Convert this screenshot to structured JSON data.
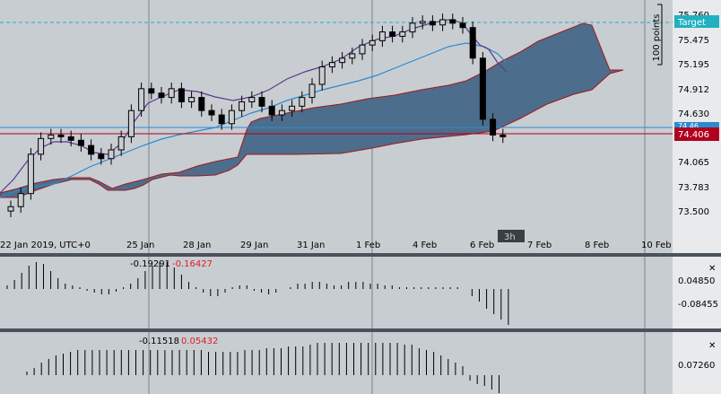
{
  "main": {
    "price_axis": {
      "ticks": [
        "75.760",
        "75.475",
        "75.195",
        "74.912",
        "74.630",
        "74.065",
        "73.783",
        "73.500"
      ],
      "current_price": "74.406",
      "hidden_label": "74.46",
      "target_label": "Target",
      "points_label": "100 points"
    },
    "time_axis": {
      "labels": [
        "22 Jan 2019, UTC+0",
        "25 Jan",
        "28 Jan",
        "29 Jan",
        "31 Jan",
        "1 Feb",
        "4 Feb",
        "6 Feb",
        "7 Feb",
        "8 Feb",
        "10 Feb"
      ],
      "cursor_label": "3h"
    }
  },
  "indicator1": {
    "value_a": "-0.19291",
    "value_b": "-0.16427",
    "ticks": [
      "0.04850",
      "-0.08455"
    ]
  },
  "indicator2": {
    "value_a": "-0.11518",
    "value_b": "0.05432",
    "ticks": [
      "0.07260"
    ]
  },
  "colors": {
    "background": "#c8cdd2",
    "cloud": "#4d6d8c",
    "cloud_edge": "#a01a1a",
    "tenkan": "#5a3a8a",
    "kijun": "#2a8ad0",
    "target": "#20b0c0",
    "price_tag": "#b00020"
  },
  "chart_data": {
    "type": "candlestick",
    "timeframe": "3h",
    "start_label": "22 Jan 2019, UTC+0",
    "close_approx": [
      73.6,
      73.75,
      74.2,
      74.38,
      74.42,
      74.4,
      74.36,
      74.3,
      74.2,
      74.15,
      74.25,
      74.4,
      74.7,
      74.95,
      74.9,
      74.85,
      74.95,
      74.8,
      74.85,
      74.7,
      74.65,
      74.55,
      74.7,
      74.8,
      74.85,
      74.75,
      74.65,
      74.7,
      74.75,
      74.85,
      75.0,
      75.2,
      75.25,
      75.3,
      75.35,
      75.45,
      75.5,
      75.6,
      75.55,
      75.6,
      75.7,
      75.72,
      75.68,
      75.74,
      75.7,
      75.65,
      75.3,
      74.6,
      74.42,
      74.4
    ]
  }
}
